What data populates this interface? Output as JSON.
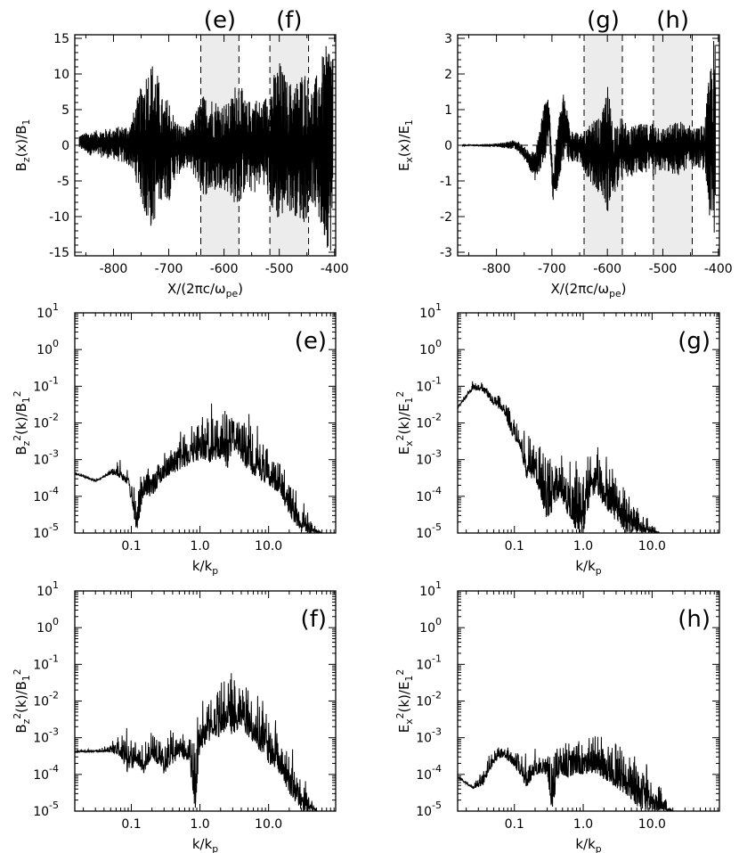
{
  "chart_data": [
    {
      "id": "top-left",
      "type": "line",
      "xlabel": "X/(2πc/ω_pe)",
      "ylabel": "B_z(x)/B_1",
      "xlim": [
        -870,
        -398
      ],
      "ylim": [
        -15.5,
        15.5
      ],
      "x_ticks": [
        -800,
        -700,
        -600,
        -500,
        -400
      ],
      "x_tick_labels": [
        "-800",
        "-700",
        "-600",
        "-500",
        "-400"
      ],
      "y_ticks": [
        -15,
        -10,
        -5,
        0,
        5,
        10,
        15
      ],
      "y_tick_labels": [
        "-15",
        "-10",
        "-5",
        "0",
        "5",
        "10",
        "15"
      ],
      "zero_line": true,
      "regions": [
        {
          "label": "(e)",
          "x": [
            -642,
            -573
          ]
        },
        {
          "label": "(f)",
          "x": [
            -517,
            -447
          ]
        }
      ],
      "series": [
        {
          "x": [
            -862,
            -840,
            -800,
            -770,
            -755,
            -740,
            -730,
            -720,
            -710,
            -700,
            -690,
            -680,
            -665,
            -650,
            -640,
            -625,
            -605,
            -590,
            -575,
            -560,
            -545,
            -530,
            -515,
            -500,
            -485,
            -470,
            -455,
            -440,
            -425,
            -410,
            -403
          ],
          "y_max": [
            1.5,
            2.0,
            2.5,
            3,
            7,
            11,
            12,
            10,
            6,
            7,
            4,
            3,
            2.5,
            5,
            7,
            7,
            6,
            6,
            10,
            6,
            7,
            6,
            9,
            12,
            9,
            9,
            11,
            8,
            12,
            15,
            15
          ],
          "y_min": [
            -0.5,
            -1.5,
            -2.0,
            -3,
            -6,
            -11,
            -12,
            -9,
            -7,
            -8,
            -5,
            -4,
            -3,
            -5,
            -7,
            -7,
            -6,
            -7,
            -9,
            -6,
            -7,
            -5,
            -9,
            -11,
            -9,
            -10,
            -11,
            -8,
            -12,
            -15,
            -15
          ]
        }
      ]
    },
    {
      "id": "top-right",
      "type": "line",
      "xlabel": "X/(2πc/ω_pe)",
      "ylabel": "E_x(x)/E_1",
      "xlim": [
        -870,
        -398
      ],
      "ylim": [
        -3.1,
        3.1
      ],
      "x_ticks": [
        -800,
        -700,
        -600,
        -500,
        -400
      ],
      "x_tick_labels": [
        "-800",
        "-700",
        "-600",
        "-500",
        "-400"
      ],
      "y_ticks": [
        -3,
        -2,
        -1,
        0,
        1,
        2,
        3
      ],
      "y_tick_labels": [
        "-3",
        "-2",
        "-1",
        "0",
        "1",
        "2",
        "3"
      ],
      "zero_line": true,
      "regions": [
        {
          "label": "(g)",
          "x": [
            -642,
            -573
          ]
        },
        {
          "label": "(h)",
          "x": [
            -517,
            -447
          ]
        }
      ],
      "series": [
        {
          "x": [
            -862,
            -800,
            -780,
            -770,
            -760,
            -745,
            -730,
            -715,
            -705,
            -698,
            -690,
            -680,
            -665,
            -650,
            -640,
            -625,
            -610,
            -600,
            -590,
            -575,
            -560,
            -545,
            -530,
            -515,
            -500,
            -485,
            -470,
            -455,
            -440,
            -425,
            -410,
            -405
          ],
          "y_max": [
            0.02,
            0.05,
            0.1,
            0.15,
            0.1,
            -0.1,
            -0.2,
            1.2,
            1.4,
            -0.8,
            0.6,
            1.5,
            0.6,
            0.3,
            0.4,
            0.7,
            0.8,
            1.8,
            0.6,
            0.8,
            0.5,
            0.6,
            0.6,
            0.7,
            0.5,
            0.6,
            0.7,
            0.6,
            0.5,
            0.6,
            3.0,
            3.0
          ],
          "y_min": [
            -0.02,
            -0.05,
            -0.1,
            -0.1,
            -0.2,
            -0.5,
            -1.0,
            -0.6,
            0.2,
            -1.6,
            -1.2,
            -0.4,
            -0.5,
            -0.5,
            -0.8,
            -1.2,
            -1.4,
            -1.9,
            -1.5,
            -1.0,
            -0.9,
            -0.8,
            -0.8,
            -0.9,
            -0.7,
            -0.8,
            -0.9,
            -0.6,
            -0.6,
            -0.7,
            -3.0,
            -3.0
          ]
        }
      ]
    },
    {
      "id": "mid-left",
      "type": "line",
      "title": "(e)",
      "xlabel": "k/k_p",
      "ylabel": "B_z^2(k)/B_1^2",
      "x_log": true,
      "y_log": true,
      "xlim": [
        0.015,
        95
      ],
      "ylim": [
        1e-05,
        10
      ],
      "x_ticks": [
        0.1,
        1.0,
        10.0
      ],
      "x_tick_labels": [
        "0.1",
        "1.0",
        "10.0"
      ],
      "y_ticks": [
        -5,
        -4,
        -3,
        -2,
        -1,
        0,
        1
      ],
      "y_tick_labels": [
        "10",
        "10",
        "10",
        "10",
        "10",
        "10",
        "10"
      ],
      "y_tick_exponents": [
        "-5",
        "-4",
        "-3",
        "-2",
        "-1",
        "0",
        "1"
      ],
      "series": [
        {
          "x": [
            0.015,
            0.03,
            0.05,
            0.07,
            0.09,
            0.12,
            0.15,
            0.2,
            0.3,
            0.5,
            0.7,
            1.0,
            1.5,
            2.0,
            2.5,
            3.0,
            4.0,
            5.0,
            7.0,
            10.0,
            15.0,
            20.0,
            30.0,
            40.0,
            50.0,
            60.0
          ],
          "y_max": [
            0.0005,
            0.0003,
            0.0006,
            0.0015,
            0.0006,
            0.0003,
            0.0006,
            0.0015,
            0.003,
            0.008,
            0.02,
            0.04,
            0.06,
            0.08,
            0.1,
            0.12,
            0.06,
            0.03,
            0.015,
            0.006,
            0.002,
            0.0007,
            0.0002,
            5e-05,
            1.5e-05,
            1e-05
          ],
          "y_min": [
            0.0004,
            0.00025,
            0.0004,
            0.0003,
            0.0002,
            1e-05,
            0.0001,
            0.0001,
            0.0003,
            0.0005,
            0.0007,
            0.001,
            0.0008,
            0.001,
            0.0005,
            0.002,
            0.001,
            0.0005,
            0.0003,
            0.0002,
            0.0001,
            3e-05,
            1e-05,
            1e-05,
            1e-05,
            1e-05
          ]
        }
      ]
    },
    {
      "id": "mid-right",
      "type": "line",
      "title": "(g)",
      "xlabel": "k/k_p",
      "ylabel": "E_x^2(k)/E_1^2",
      "x_log": true,
      "y_log": true,
      "xlim": [
        0.015,
        95
      ],
      "ylim": [
        1e-05,
        10
      ],
      "x_ticks": [
        0.1,
        1.0,
        10.0
      ],
      "x_tick_labels": [
        "0.1",
        "1.0",
        "10.0"
      ],
      "y_ticks": [
        -5,
        -4,
        -3,
        -2,
        -1,
        0,
        1
      ],
      "y_tick_labels": [
        "10",
        "10",
        "10",
        "10",
        "10",
        "10",
        "10"
      ],
      "y_tick_exponents": [
        "-5",
        "-4",
        "-3",
        "-2",
        "-1",
        "0",
        "1"
      ],
      "series": [
        {
          "x": [
            0.015,
            0.025,
            0.035,
            0.05,
            0.07,
            0.09,
            0.12,
            0.15,
            0.2,
            0.3,
            0.45,
            0.6,
            0.8,
            1.0,
            1.3,
            1.6,
            2.0,
            2.5,
            3.0,
            4.0,
            5.0,
            7.0,
            10.0,
            13.0,
            16.0
          ],
          "y_max": [
            0.03,
            0.15,
            0.15,
            0.08,
            0.05,
            0.03,
            0.01,
            0.008,
            0.006,
            0.005,
            0.003,
            0.002,
            0.002,
            0.002,
            0.003,
            0.003,
            0.002,
            0.002,
            0.001,
            0.0005,
            0.0002,
            6e-05,
            2e-05,
            1e-05,
            1e-05
          ],
          "y_min": [
            0.025,
            0.08,
            0.07,
            0.03,
            0.02,
            0.005,
            0.002,
            0.0003,
            0.0003,
            2e-05,
            0.0001,
            3e-05,
            1e-05,
            1e-05,
            0.0001,
            0.0001,
            5e-05,
            3e-05,
            2e-05,
            1e-05,
            1e-05,
            1e-05,
            1e-05,
            1e-05,
            1e-05
          ]
        }
      ]
    },
    {
      "id": "bottom-left",
      "type": "line",
      "title": "(f)",
      "xlabel": "k/k_p",
      "ylabel": "B_z^2(k)/B_1^2",
      "x_log": true,
      "y_log": true,
      "xlim": [
        0.015,
        95
      ],
      "ylim": [
        1e-05,
        10
      ],
      "x_ticks": [
        0.1,
        1.0,
        10.0
      ],
      "x_tick_labels": [
        "0.1",
        "1.0",
        "10.0"
      ],
      "y_ticks": [
        -5,
        -4,
        -3,
        -2,
        -1,
        0,
        1
      ],
      "y_tick_labels": [
        "10",
        "10",
        "10",
        "10",
        "10",
        "10",
        "10"
      ],
      "y_tick_exponents": [
        "-5",
        "-4",
        "-3",
        "-2",
        "-1",
        "0",
        "1"
      ],
      "series": [
        {
          "x": [
            0.015,
            0.03,
            0.05,
            0.07,
            0.09,
            0.12,
            0.15,
            0.2,
            0.3,
            0.5,
            0.7,
            0.85,
            1.0,
            1.5,
            2.0,
            2.5,
            3.0,
            4.0,
            5.0,
            7.0,
            10.0,
            15.0,
            20.0,
            30.0,
            40.0,
            50.0,
            60.0
          ],
          "y_max": [
            0.0005,
            0.0005,
            0.0008,
            0.002,
            0.003,
            0.001,
            0.002,
            0.002,
            0.002,
            0.003,
            0.002,
            0.003,
            0.02,
            0.03,
            0.08,
            0.12,
            0.15,
            0.12,
            0.08,
            0.03,
            0.01,
            0.003,
            0.001,
            0.0002,
            4e-05,
            1e-05,
            1e-05
          ],
          "y_min": [
            0.0004,
            0.0004,
            0.0004,
            0.0003,
            0.0001,
            0.0002,
            0.0001,
            0.0003,
            0.0001,
            0.0003,
            0.0002,
            1e-05,
            0.0004,
            0.001,
            0.001,
            0.002,
            0.001,
            0.002,
            0.001,
            0.0005,
            0.0002,
            0.0001,
            3e-05,
            1e-05,
            1e-05,
            1e-05,
            1e-05
          ]
        }
      ]
    },
    {
      "id": "bottom-right",
      "type": "line",
      "title": "(h)",
      "xlabel": "k/k_p",
      "ylabel": "E_x^2(k)/E_1^2",
      "x_log": true,
      "y_log": true,
      "xlim": [
        0.015,
        95
      ],
      "ylim": [
        1e-05,
        10
      ],
      "x_ticks": [
        0.1,
        1.0,
        10.0
      ],
      "x_tick_labels": [
        "0.1",
        "1.0",
        "10.0"
      ],
      "y_ticks": [
        -5,
        -4,
        -3,
        -2,
        -1,
        0,
        1
      ],
      "y_tick_labels": [
        "10",
        "10",
        "10",
        "10",
        "10",
        "10",
        "10"
      ],
      "y_tick_exponents": [
        "-5",
        "-4",
        "-3",
        "-2",
        "-1",
        "0",
        "1"
      ],
      "series": [
        {
          "x": [
            0.015,
            0.025,
            0.035,
            0.05,
            0.07,
            0.09,
            0.12,
            0.15,
            0.2,
            0.25,
            0.3,
            0.35,
            0.45,
            0.6,
            0.8,
            1.0,
            1.3,
            1.6,
            2.0,
            2.5,
            3.0,
            4.0,
            5.0,
            7.0,
            10.0,
            13.0,
            16.0,
            20.0
          ],
          "y_max": [
            0.0001,
            5e-05,
            0.0003,
            0.0005,
            0.0008,
            0.001,
            0.0008,
            0.0005,
            0.0009,
            0.0005,
            0.0008,
            0.0009,
            0.001,
            0.0012,
            0.0012,
            0.0015,
            0.0018,
            0.002,
            0.0025,
            0.0022,
            0.002,
            0.0015,
            0.001,
            0.0006,
            0.0002,
            8e-05,
            3e-05,
            1e-05
          ],
          "y_min": [
            8e-05,
            4e-05,
            5e-05,
            0.0002,
            0.0003,
            0.0002,
            0.0001,
            4e-05,
            0.0001,
            0.0001,
            0.0001,
            1e-05,
            0.0001,
            8e-05,
            0.0001,
            0.0001,
            0.0001,
            0.0001,
            7e-05,
            6e-05,
            4e-05,
            3e-05,
            2e-05,
            1e-05,
            1e-05,
            1e-05,
            1e-05,
            1e-05
          ]
        }
      ]
    }
  ]
}
